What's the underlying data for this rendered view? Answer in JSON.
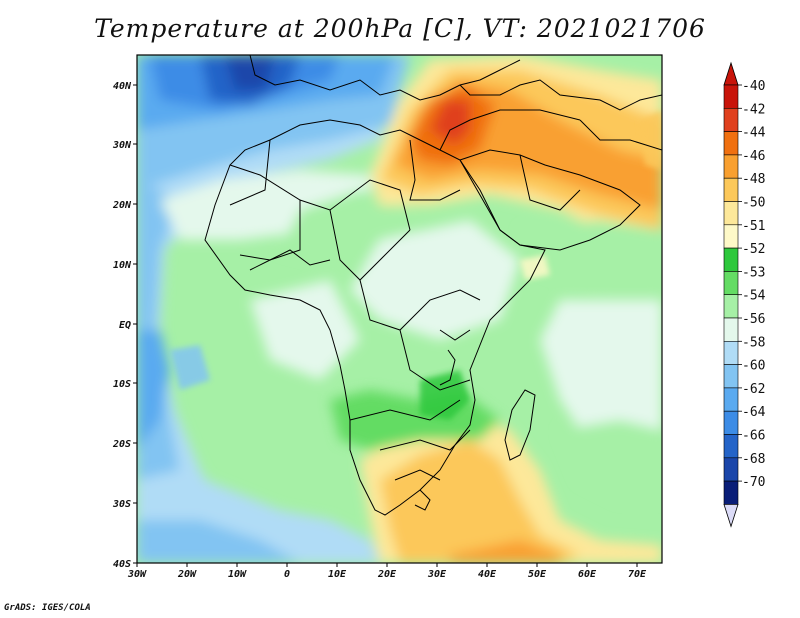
{
  "title": "Temperature at 200hPa [C], VT: 2021021706",
  "credit": "GrADS: IGES/COLA",
  "axes": {
    "lon_labels": [
      "30W",
      "20W",
      "10W",
      "0",
      "10E",
      "20E",
      "30E",
      "40E",
      "50E",
      "60E",
      "70E"
    ],
    "lat_labels": [
      "40N",
      "30N",
      "20N",
      "10N",
      "EQ",
      "10S",
      "20S",
      "30S",
      "40S"
    ]
  },
  "colorbar": {
    "labels": [
      "-40",
      "-42",
      "-44",
      "-46",
      "-48",
      "-50",
      "-51",
      "-52",
      "-53",
      "-54",
      "-56",
      "-58",
      "-60",
      "-62",
      "-64",
      "-66",
      "-68",
      "-70"
    ],
    "colors": [
      "#c8140a",
      "#e0401e",
      "#f07010",
      "#f9a030",
      "#fcc85a",
      "#fde89a",
      "#fef9c8",
      "#2ec83c",
      "#64dc64",
      "#a6f0a6",
      "#e4f8ec",
      "#b0dcf6",
      "#82c4f2",
      "#5aaaf0",
      "#3c8ce6",
      "#2464c8",
      "#1a46aa",
      "#0a1e78"
    ]
  },
  "colors": {
    "frame": "#000000",
    "border_lines": "#000000"
  }
}
